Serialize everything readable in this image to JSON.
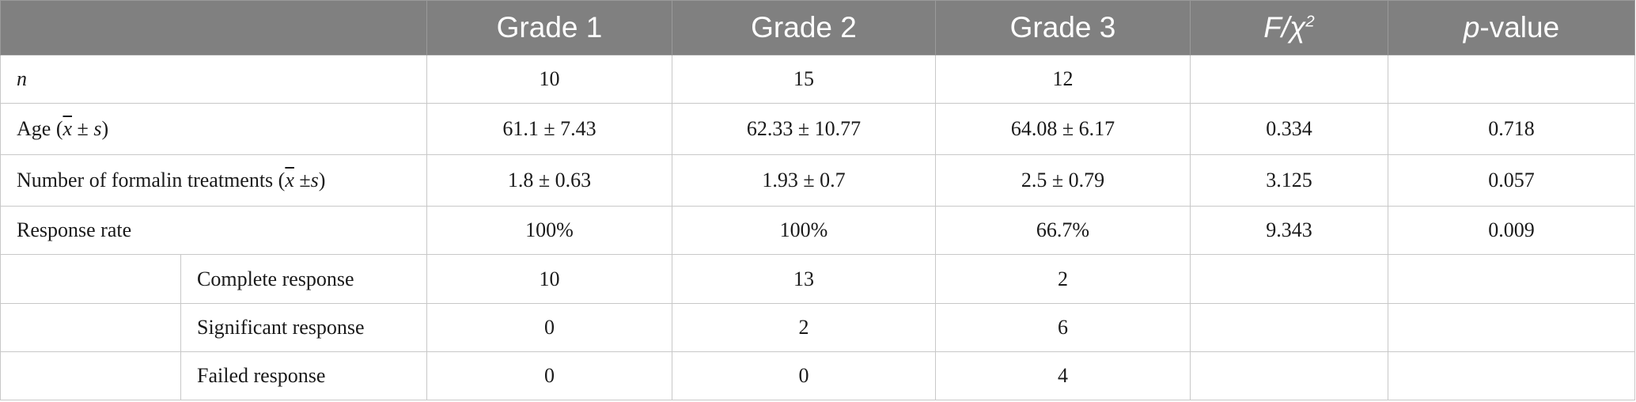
{
  "header": {
    "grade1": "Grade 1",
    "grade2": "Grade 2",
    "grade3": "Grade 3",
    "stat_main": "F/χ",
    "stat_sup": "2",
    "p_ital": "p",
    "p_rest": "-value"
  },
  "rows": [
    {
      "label": "n",
      "g1": "10",
      "g2": "15",
      "g3": "12",
      "stat": "",
      "p": ""
    },
    {
      "label_pre": "Age (",
      "label_x": "x",
      "label_mid": " ± ",
      "label_s": "s",
      "label_post": ")",
      "g1": "61.1 ± 7.43",
      "g2": "62.33 ± 10.77",
      "g3": "64.08 ± 6.17",
      "stat": "0.334",
      "p": "0.718"
    },
    {
      "label_pre": "Number of formalin treatments (",
      "label_x": "x",
      "label_mid": " ±",
      "label_s": "s",
      "label_post": ")",
      "g1": "1.8 ± 0.63",
      "g2": "1.93 ± 0.7",
      "g3": "2.5 ± 0.79",
      "stat": "3.125",
      "p": "0.057"
    },
    {
      "label": "Response rate",
      "g1": "100%",
      "g2": "100%",
      "g3": "66.7%",
      "stat": "9.343",
      "p": "0.009"
    },
    {
      "label": "Complete response",
      "g1": "10",
      "g2": "13",
      "g3": "2",
      "stat": "",
      "p": ""
    },
    {
      "label": "Significant response",
      "g1": "0",
      "g2": "2",
      "g3": "6",
      "stat": "",
      "p": ""
    },
    {
      "label": "Failed response",
      "g1": "0",
      "g2": "0",
      "g3": "4",
      "stat": "",
      "p": ""
    }
  ]
}
